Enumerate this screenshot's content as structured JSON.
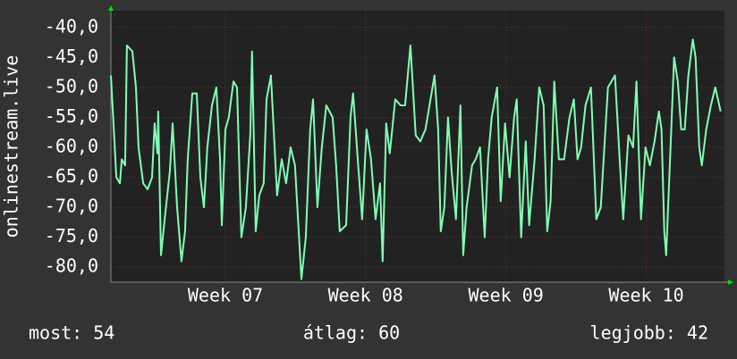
{
  "chart_data": {
    "type": "line",
    "ylabel": "onlinestream.live",
    "annotations": [
      "most: 54",
      "átlag: 60",
      "legjobb: 42"
    ],
    "color": "#80ffb4",
    "grid": true,
    "xlim": [
      0,
      30.6
    ],
    "ylim": [
      -82.5,
      -37.2
    ],
    "xticks": [
      {
        "value": 5.71,
        "label": "Week 07"
      },
      {
        "value": 12.7,
        "label": "Week 08"
      },
      {
        "value": 19.7,
        "label": "Week 09"
      },
      {
        "value": 26.7,
        "label": "Week 10"
      }
    ],
    "yticks": [
      {
        "value": -40,
        "label": "-40,0"
      },
      {
        "value": -45,
        "label": "-45,0"
      },
      {
        "value": -50,
        "label": "-50,0"
      },
      {
        "value": -55,
        "label": "-55,0"
      },
      {
        "value": -60,
        "label": "-60,0"
      },
      {
        "value": -65,
        "label": "-65,0"
      },
      {
        "value": -70,
        "label": "-70,0"
      },
      {
        "value": -75,
        "label": "-75,0"
      },
      {
        "value": -80,
        "label": "-80,0"
      }
    ],
    "x": [
      0.0,
      0.27,
      0.45,
      0.54,
      0.71,
      0.8,
      1.07,
      1.25,
      1.38,
      1.61,
      1.83,
      2.05,
      2.18,
      2.32,
      2.36,
      2.5,
      2.68,
      2.94,
      3.08,
      3.3,
      3.52,
      3.7,
      3.83,
      4.06,
      4.28,
      4.46,
      4.64,
      4.81,
      5.04,
      5.26,
      5.44,
      5.53,
      5.71,
      5.88,
      6.11,
      6.29,
      6.42,
      6.51,
      6.73,
      6.95,
      7.04,
      7.22,
      7.4,
      7.62,
      7.76,
      7.98,
      8.29,
      8.52,
      8.74,
      8.96,
      9.18,
      9.5,
      9.72,
      9.94,
      10.08,
      10.3,
      10.52,
      10.74,
      11.06,
      11.23,
      11.41,
      11.73,
      11.95,
      12.08,
      12.31,
      12.53,
      12.75,
      12.97,
      13.2,
      13.42,
      13.55,
      13.73,
      13.91,
      14.18,
      14.45,
      14.67,
      14.94,
      15.2,
      15.43,
      15.69,
      16.14,
      16.32,
      16.45,
      16.63,
      16.81,
      16.99,
      17.21,
      17.43,
      17.57,
      17.74,
      18.01,
      18.19,
      18.41,
      18.64,
      18.81,
      18.99,
      19.26,
      19.44,
      19.66,
      19.88,
      20.11,
      20.24,
      20.46,
      20.69,
      20.86,
      21.13,
      21.36,
      21.58,
      21.76,
      21.93,
      22.11,
      22.34,
      22.6,
      22.87,
      23.09,
      23.27,
      23.45,
      23.67,
      23.94,
      24.21,
      24.43,
      24.79,
      25.14,
      25.37,
      25.55,
      25.81,
      26.04,
      26.21,
      26.44,
      26.66,
      26.88,
      27.11,
      27.33,
      27.46,
      27.6,
      27.69,
      27.91,
      28.09,
      28.27,
      28.44,
      28.62,
      28.8,
      29.02,
      29.16,
      29.34,
      29.47,
      29.69,
      29.92,
      30.14,
      30.41
    ],
    "values": [
      -48,
      -65,
      -66,
      -62,
      -63,
      -43,
      -44,
      -50,
      -60,
      -66,
      -67,
      -65,
      -56,
      -61,
      -54,
      -78,
      -72,
      -64,
      -56,
      -70,
      -79,
      -74,
      -62,
      -51,
      -51,
      -65,
      -70,
      -60,
      -53,
      -50,
      -62,
      -73,
      -57,
      -55,
      -49,
      -50,
      -65,
      -75,
      -70,
      -58,
      -44,
      -74,
      -68,
      -66,
      -52,
      -48,
      -68,
      -62,
      -66,
      -60,
      -63,
      -82,
      -75,
      -57,
      -52,
      -70,
      -60,
      -53,
      -55,
      -63,
      -74,
      -73,
      -55,
      -51,
      -62,
      -72,
      -57,
      -62,
      -72,
      -66,
      -79,
      -56,
      -61,
      -52,
      -53,
      -53,
      -43,
      -58,
      -59,
      -57,
      -48,
      -57,
      -74,
      -70,
      -55,
      -64,
      -72,
      -53,
      -78,
      -70,
      -63,
      -62,
      -60,
      -75,
      -62,
      -55,
      -50,
      -69,
      -56,
      -65,
      -55,
      -52,
      -75,
      -59,
      -73,
      -62,
      -50,
      -53,
      -74,
      -69,
      -49,
      -62,
      -62,
      -55,
      -52,
      -62,
      -60,
      -53,
      -50,
      -72,
      -70,
      -50,
      -48,
      -62,
      -72,
      -58,
      -60,
      -49,
      -72,
      -60,
      -63,
      -59,
      -54,
      -57,
      -74,
      -78,
      -60,
      -45,
      -49,
      -57,
      -57,
      -48,
      -42,
      -45,
      -60,
      -63,
      -57,
      -53,
      -50,
      -54
    ]
  }
}
